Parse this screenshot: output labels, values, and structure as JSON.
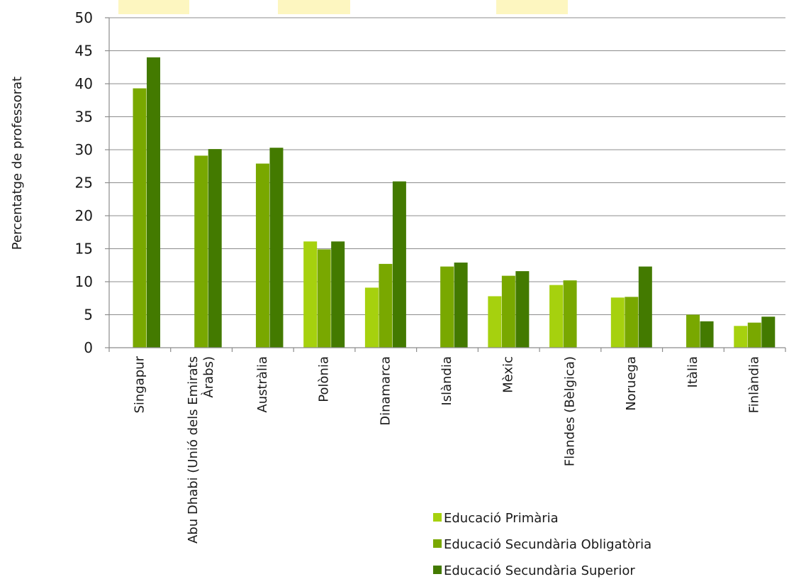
{
  "chart_data": {
    "type": "bar",
    "ylabel": "Percentatge de professorat",
    "ylim": [
      0,
      50
    ],
    "yticks": [
      0,
      5,
      10,
      15,
      20,
      25,
      30,
      35,
      40,
      45,
      50
    ],
    "grid": true,
    "legend_position": "bottom-right",
    "categories": [
      [
        "Singapur"
      ],
      [
        "Abu Dhabi (Unió dels Emirats",
        "Àrabs)"
      ],
      [
        "Austràlia"
      ],
      [
        "Polònia"
      ],
      [
        "Dinamarca"
      ],
      [
        "Islàndia"
      ],
      [
        "Mèxic"
      ],
      [
        "Flandes (Bèlgica)"
      ],
      [
        "Noruega"
      ],
      [
        "Itàlia"
      ],
      [
        "Finlàndia"
      ]
    ],
    "series": [
      {
        "name": "Educació Primària",
        "color": "#a6d10e",
        "values": [
          null,
          null,
          null,
          16.1,
          9.1,
          null,
          7.8,
          9.5,
          7.6,
          null,
          3.3
        ]
      },
      {
        "name": "Educació Secundària Obligatòria",
        "color": "#79a800",
        "values": [
          39.3,
          29.1,
          27.9,
          14.9,
          12.7,
          12.3,
          10.9,
          10.2,
          7.7,
          5.0,
          3.8
        ]
      },
      {
        "name": "Educació Secundària Superior",
        "color": "#437a00",
        "values": [
          44.0,
          30.1,
          30.3,
          16.1,
          25.2,
          12.9,
          11.6,
          null,
          12.3,
          4.0,
          4.7
        ]
      }
    ]
  },
  "highlight_color": "#fdf6c0"
}
